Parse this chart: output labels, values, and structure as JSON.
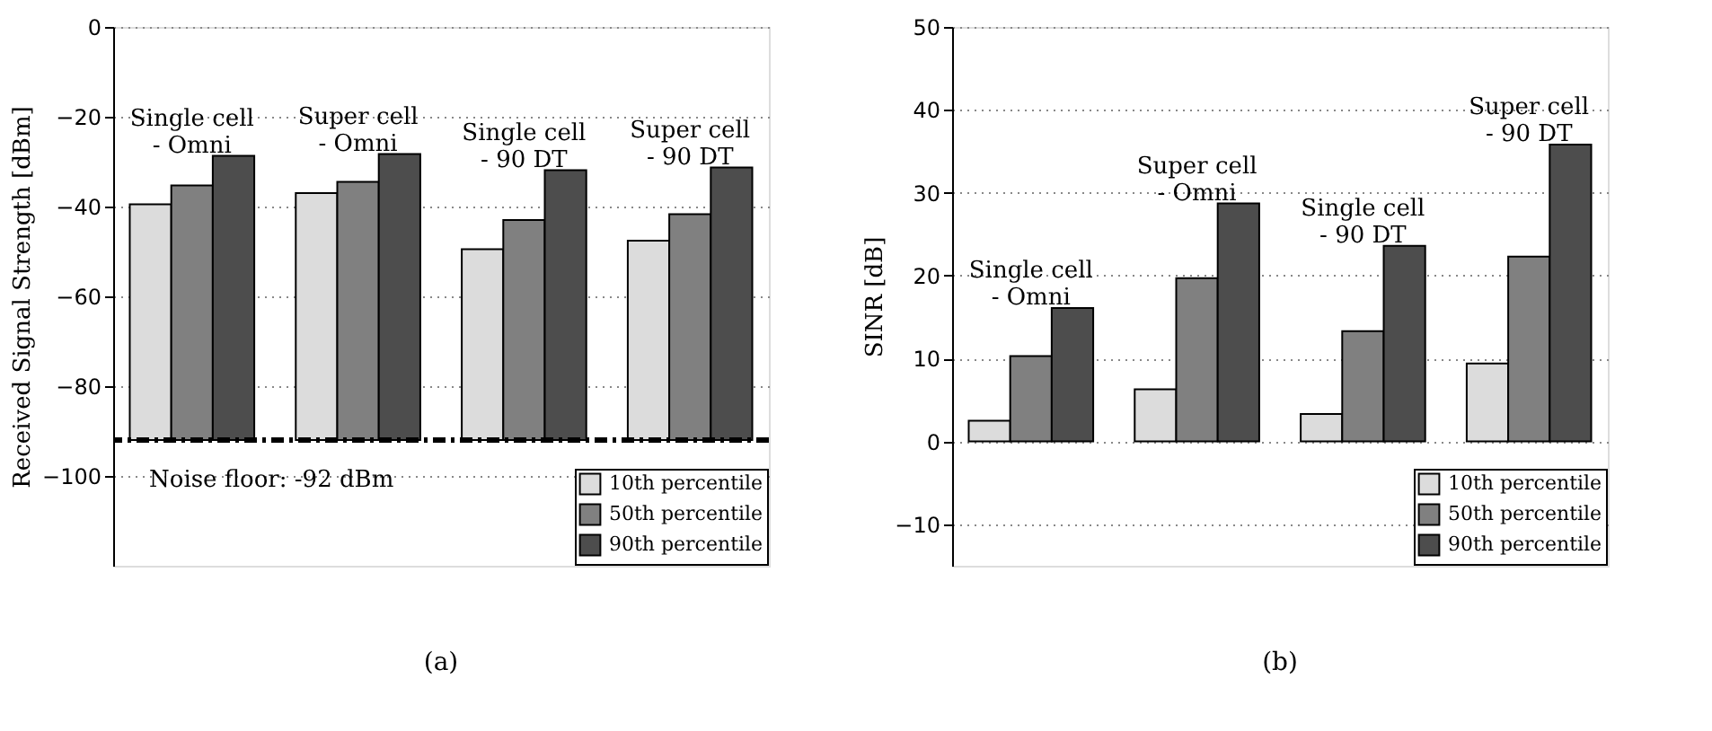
{
  "chart_data": [
    {
      "type": "bar",
      "title": "(a)",
      "ylabel": "Received Signal Strength [dBm]",
      "categories": [
        null,
        null,
        null,
        null
      ],
      "series": [
        {
          "name": "10th percentile",
          "color": "#dcdcdc",
          "base": [
            -92,
            -92,
            -92,
            -92
          ],
          "values": [
            52.5,
            55.0,
            42.5,
            44.4
          ]
        },
        {
          "name": "50th percentile",
          "color": "#808080",
          "base": [
            -92,
            -92,
            -92,
            -92
          ],
          "values": [
            56.7,
            57.5,
            49.0,
            50.3
          ]
        },
        {
          "name": "90th percentile",
          "color": "#4d4d4d",
          "base": [
            -92,
            -92,
            -92,
            -92
          ],
          "values": [
            63.3,
            63.7,
            60.1,
            60.7
          ]
        }
      ],
      "ylim": [
        -120,
        0
      ],
      "yticks": [
        0,
        -20,
        -40,
        -60,
        -80,
        -100
      ],
      "grid": "y",
      "legend": "bottom right",
      "ref_lines": [
        {
          "axis": "y",
          "value": -92,
          "label": "Noise floor: -92 dBm",
          "color": "#000000",
          "line_style": "dashed"
        }
      ],
      "annotations": [
        "Single cell\n- Omni",
        "Super cell\n- Omni",
        "Single cell\n- 90 DT",
        "Super cell\n- 90 DT"
      ]
    },
    {
      "type": "bar",
      "title": "(b)",
      "ylabel": "SINR [dB]",
      "categories": [
        null,
        null,
        null,
        null
      ],
      "series": [
        {
          "name": "10th percentile",
          "color": "#dcdcdc",
          "values": [
            2.5,
            6.3,
            3.3,
            9.4
          ]
        },
        {
          "name": "50th percentile",
          "color": "#808080",
          "values": [
            10.3,
            19.7,
            13.3,
            22.3
          ]
        },
        {
          "name": "90th percentile",
          "color": "#4d4d4d",
          "values": [
            16.1,
            28.7,
            23.6,
            35.8
          ]
        }
      ],
      "ylim": [
        -15,
        50
      ],
      "yticks": [
        50,
        40,
        30,
        20,
        10,
        0,
        -10
      ],
      "grid": "y",
      "legend": "bottom right",
      "annotations": [
        "Single cell\n- Omni",
        "Super cell\n- Omni",
        "Single cell\n- 90 DT",
        "Super cell\n- 90 DT"
      ]
    }
  ]
}
